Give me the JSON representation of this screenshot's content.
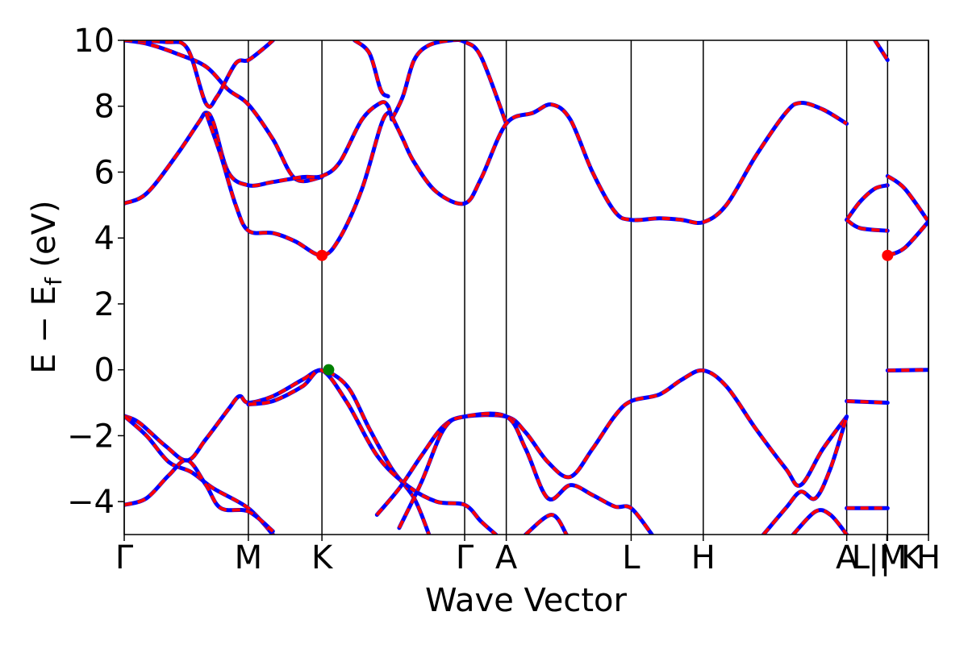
{
  "chart_data": {
    "type": "line",
    "title": "",
    "xlabel": "Wave Vector",
    "ylabel": "E − E_f (eV)",
    "ylabel_main": "E − E",
    "ylabel_sub": "f",
    "ylabel_tail": " (eV)",
    "ylim": [
      -5,
      10
    ],
    "yticks": [
      -4,
      -2,
      0,
      2,
      4,
      6,
      8,
      10
    ],
    "ytick_labels": [
      "−4",
      "−2",
      "0",
      "2",
      "4",
      "6",
      "8",
      "10"
    ],
    "xlim": [
      0,
      10.82
    ],
    "kpoints": [
      {
        "label": "Γ",
        "x": 0
      },
      {
        "label": "M",
        "x": 1.67
      },
      {
        "label": "K",
        "x": 2.66
      },
      {
        "label": "Γ",
        "x": 4.58
      },
      {
        "label": "A",
        "x": 5.14
      },
      {
        "label": "L",
        "x": 6.82
      },
      {
        "label": "H",
        "x": 7.79
      },
      {
        "label": "A",
        "x": 9.72
      },
      {
        "label": "|M",
        "x": 10.27
      },
      {
        "label": "L | K",
        "x": 10.26
      },
      {
        "label": "H",
        "x": 10.82
      }
    ],
    "kpoint_lines_x": [
      0,
      1.67,
      2.66,
      4.58,
      5.14,
      6.82,
      7.79,
      9.72,
      10.27,
      10.82
    ],
    "grid": false,
    "line_colors": {
      "primary": "#ff0000",
      "overlay": "#0000ff"
    },
    "series": [
      {
        "points": [
          [
            0,
            10
          ],
          [
            0.3,
            9.9
          ],
          [
            0.7,
            9.6
          ],
          [
            1.1,
            9.2
          ],
          [
            1.4,
            8.5
          ],
          [
            1.67,
            8.05
          ],
          [
            2.0,
            7.0
          ],
          [
            2.3,
            5.8
          ],
          [
            2.66,
            5.85
          ]
        ]
      },
      {
        "points": [
          [
            0,
            10
          ],
          [
            0.55,
            9.95
          ],
          [
            0.85,
            9.75
          ],
          [
            1.1,
            8.08
          ],
          [
            1.25,
            8.3
          ],
          [
            1.5,
            9.3
          ],
          [
            1.67,
            9.4
          ],
          [
            1.9,
            9.8
          ],
          [
            2.0,
            10
          ]
        ]
      },
      {
        "points": [
          [
            0,
            5.05
          ],
          [
            0.3,
            5.35
          ],
          [
            0.7,
            6.5
          ],
          [
            1.0,
            7.5
          ],
          [
            1.1,
            7.8
          ],
          [
            1.2,
            7.5
          ],
          [
            1.4,
            6.0
          ],
          [
            1.67,
            5.6
          ],
          [
            2.0,
            5.7
          ],
          [
            2.4,
            5.85
          ],
          [
            2.66,
            5.88
          ],
          [
            2.9,
            6.3
          ],
          [
            3.2,
            7.6
          ],
          [
            3.45,
            8.1
          ],
          [
            3.55,
            8.0
          ],
          [
            3.6,
            7.6
          ]
        ]
      },
      {
        "points": [
          [
            1.1,
            7.8
          ],
          [
            1.3,
            6.5
          ],
          [
            1.5,
            5.0
          ],
          [
            1.67,
            4.22
          ],
          [
            2.0,
            4.15
          ],
          [
            2.3,
            3.9
          ],
          [
            2.66,
            3.47
          ],
          [
            2.9,
            4.0
          ],
          [
            3.2,
            5.5
          ],
          [
            3.45,
            7.4
          ],
          [
            3.55,
            7.8
          ],
          [
            3.6,
            7.7
          ]
        ]
      },
      {
        "points": [
          [
            3.6,
            7.6
          ],
          [
            3.75,
            8.3
          ],
          [
            3.9,
            9.4
          ],
          [
            4.1,
            9.85
          ],
          [
            4.4,
            10
          ],
          [
            4.58,
            9.95
          ],
          [
            4.8,
            9.5
          ],
          [
            5.14,
            7.47
          ]
        ]
      },
      {
        "points": [
          [
            3.6,
            7.7
          ],
          [
            3.75,
            7.0
          ],
          [
            3.9,
            6.3
          ],
          [
            4.2,
            5.4
          ],
          [
            4.58,
            5.05
          ],
          [
            4.8,
            5.8
          ],
          [
            5.14,
            7.47
          ],
          [
            5.5,
            7.8
          ],
          [
            5.75,
            8.05
          ],
          [
            6.0,
            7.6
          ],
          [
            6.3,
            6.0
          ],
          [
            6.6,
            4.8
          ],
          [
            6.82,
            4.55
          ],
          [
            7.2,
            4.6
          ],
          [
            7.5,
            4.55
          ],
          [
            7.79,
            4.48
          ],
          [
            8.1,
            5.0
          ],
          [
            8.5,
            6.5
          ],
          [
            8.9,
            7.8
          ],
          [
            9.1,
            8.1
          ],
          [
            9.4,
            7.9
          ],
          [
            9.72,
            7.47
          ]
        ]
      },
      {
        "points": [
          [
            3.1,
            10
          ],
          [
            3.3,
            9.6
          ],
          [
            3.45,
            8.5
          ],
          [
            3.55,
            8.3
          ]
        ]
      },
      {
        "points": [
          [
            0,
            -1.4
          ],
          [
            0.2,
            -1.6
          ],
          [
            0.55,
            -2.3
          ],
          [
            0.85,
            -2.75
          ],
          [
            1.1,
            -2.1
          ],
          [
            1.4,
            -1.2
          ],
          [
            1.55,
            -0.8
          ],
          [
            1.67,
            -1.0
          ],
          [
            2.0,
            -0.8
          ],
          [
            2.4,
            -0.3
          ],
          [
            2.66,
            -0.02
          ],
          [
            3.0,
            -0.5
          ],
          [
            3.3,
            -1.8
          ],
          [
            3.6,
            -3.0
          ],
          [
            3.9,
            -3.9
          ],
          [
            4.1,
            -5.0
          ]
        ]
      },
      {
        "points": [
          [
            0,
            -1.4
          ],
          [
            0.3,
            -2.0
          ],
          [
            0.6,
            -2.8
          ],
          [
            0.9,
            -3.1
          ],
          [
            1.2,
            -3.6
          ],
          [
            1.67,
            -4.2
          ],
          [
            2.0,
            -5.0
          ]
        ]
      },
      {
        "points": [
          [
            0,
            -4.1
          ],
          [
            0.3,
            -3.9
          ],
          [
            0.6,
            -3.2
          ],
          [
            0.85,
            -2.75
          ],
          [
            1.1,
            -3.5
          ],
          [
            1.3,
            -4.2
          ],
          [
            1.67,
            -4.3
          ],
          [
            2.0,
            -4.9
          ]
        ]
      },
      {
        "points": [
          [
            1.67,
            -1.05
          ],
          [
            2.0,
            -0.95
          ],
          [
            2.4,
            -0.5
          ],
          [
            2.66,
            -0.02
          ],
          [
            3.0,
            -1.0
          ],
          [
            3.4,
            -2.6
          ],
          [
            3.8,
            -3.5
          ],
          [
            4.2,
            -4.0
          ],
          [
            4.58,
            -4.1
          ],
          [
            4.8,
            -4.6
          ],
          [
            5.0,
            -5.0
          ]
        ]
      },
      {
        "points": [
          [
            3.4,
            -4.4
          ],
          [
            3.7,
            -3.6
          ],
          [
            4.0,
            -2.6
          ],
          [
            4.3,
            -1.7
          ],
          [
            4.58,
            -1.42
          ],
          [
            5.14,
            -1.42
          ],
          [
            5.4,
            -1.9
          ],
          [
            5.7,
            -2.8
          ],
          [
            6.0,
            -3.25
          ],
          [
            6.3,
            -2.4
          ],
          [
            6.6,
            -1.4
          ],
          [
            6.82,
            -0.95
          ],
          [
            7.2,
            -0.75
          ],
          [
            7.5,
            -0.3
          ],
          [
            7.79,
            -0.02
          ],
          [
            8.1,
            -0.5
          ],
          [
            8.5,
            -1.8
          ],
          [
            8.9,
            -3.0
          ],
          [
            9.1,
            -3.5
          ],
          [
            9.4,
            -2.4
          ],
          [
            9.72,
            -1.42
          ]
        ]
      },
      {
        "points": [
          [
            3.7,
            -4.8
          ],
          [
            4.0,
            -3.4
          ],
          [
            4.3,
            -1.8
          ],
          [
            4.58,
            -1.42
          ],
          [
            5.14,
            -1.42
          ],
          [
            5.4,
            -2.4
          ],
          [
            5.7,
            -3.9
          ],
          [
            6.0,
            -3.5
          ],
          [
            6.3,
            -3.8
          ],
          [
            6.6,
            -4.15
          ],
          [
            6.82,
            -4.2
          ],
          [
            7.1,
            -5.0
          ]
        ]
      },
      {
        "points": [
          [
            5.4,
            -5.0
          ],
          [
            5.75,
            -4.4
          ],
          [
            5.95,
            -5.0
          ]
        ]
      },
      {
        "points": [
          [
            8.6,
            -5.0
          ],
          [
            8.9,
            -4.2
          ],
          [
            9.1,
            -3.7
          ],
          [
            9.3,
            -3.9
          ],
          [
            9.5,
            -3.0
          ],
          [
            9.72,
            -1.42
          ]
        ]
      },
      {
        "points": [
          [
            9.0,
            -5.0
          ],
          [
            9.3,
            -4.3
          ],
          [
            9.5,
            -4.4
          ],
          [
            9.72,
            -5.0
          ]
        ]
      },
      {
        "points": [
          [
            9.72,
            4.55
          ],
          [
            9.9,
            5.1
          ],
          [
            10.1,
            5.5
          ],
          [
            10.27,
            5.6
          ]
        ]
      },
      {
        "points": [
          [
            9.72,
            4.55
          ],
          [
            9.9,
            4.3
          ],
          [
            10.27,
            4.22
          ]
        ]
      },
      {
        "points": [
          [
            10.27,
            5.88
          ],
          [
            10.5,
            5.5
          ],
          [
            10.82,
            4.5
          ]
        ]
      },
      {
        "points": [
          [
            10.27,
            3.47
          ],
          [
            10.5,
            3.7
          ],
          [
            10.82,
            4.5
          ]
        ]
      },
      {
        "points": [
          [
            10.1,
            10
          ],
          [
            10.27,
            9.4
          ]
        ]
      },
      {
        "points": [
          [
            9.72,
            -0.95
          ],
          [
            10.27,
            -1.0
          ]
        ]
      },
      {
        "points": [
          [
            9.72,
            -4.2
          ],
          [
            10.27,
            -4.2
          ]
        ]
      },
      {
        "points": [
          [
            10.27,
            -0.02
          ],
          [
            10.82,
            0.0
          ]
        ]
      }
    ],
    "markers": [
      {
        "x": 2.66,
        "y": 3.47,
        "color": "#ff0000"
      },
      {
        "x": 10.27,
        "y": 3.47,
        "color": "#ff0000"
      },
      {
        "x": 2.75,
        "y": 0.0,
        "color": "#008000"
      }
    ]
  }
}
